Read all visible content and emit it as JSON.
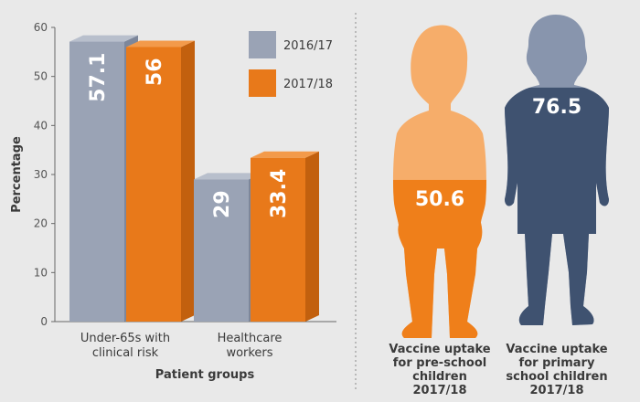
{
  "chart_data": [
    {
      "type": "bar",
      "xlabel": "Patient groups",
      "ylabel": "Percentage",
      "ylim": [
        0,
        60
      ],
      "yticks": [
        "0",
        "10",
        "20",
        "30",
        "40",
        "50",
        "60"
      ],
      "categories": [
        [
          "Under-65s with",
          "clinical risk"
        ],
        [
          "Healthcare",
          "workers"
        ]
      ],
      "series": [
        {
          "name": "2016/17",
          "values": [
            57.1,
            29
          ],
          "labels": [
            "57.1",
            "29"
          ],
          "color": "#9aa3b5",
          "side_color": "#7d879b",
          "top_color": "#b8bfcc"
        },
        {
          "name": "2017/18",
          "values": [
            56,
            33.4
          ],
          "labels": [
            "56",
            "33.4"
          ],
          "color": "#e8791a",
          "side_color": "#c2600e",
          "top_color": "#f39a4a"
        }
      ],
      "legend": "top-right",
      "grid": false
    },
    {
      "type": "pictogram",
      "items": [
        {
          "value": 50.6,
          "label": "50.6",
          "caption": [
            "Vaccine uptake",
            "for pre-school",
            "children",
            "2017/18"
          ],
          "fill_color": "#ef7f1a",
          "empty_color": "#f6ad6a"
        },
        {
          "value": 76.5,
          "label": "76.5",
          "caption": [
            "Vaccine uptake",
            "for primary",
            "school children",
            "2017/18"
          ],
          "fill_color": "#3f5270",
          "empty_color": "#8895ad"
        }
      ]
    }
  ]
}
